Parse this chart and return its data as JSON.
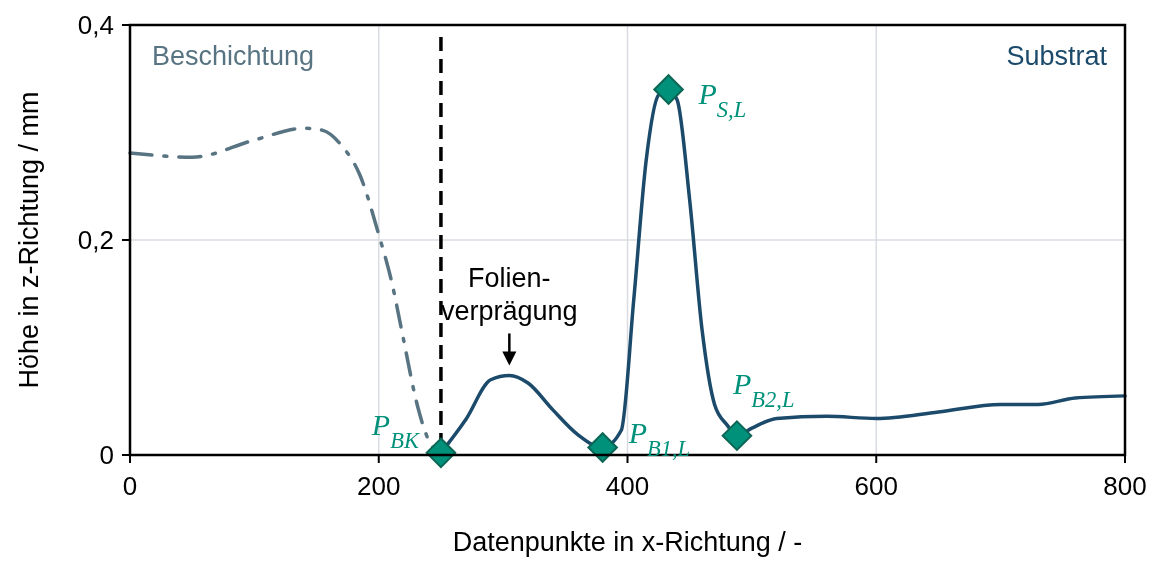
{
  "chart_data": {
    "type": "line",
    "xlabel": "Datenpunkte in x-Richtung / -",
    "ylabel": "Höhe in z-Richtung / mm",
    "xlim": [
      0,
      800
    ],
    "ylim": [
      0,
      0.4
    ],
    "xticks": [
      0,
      200,
      400,
      600,
      800
    ],
    "yticks": [
      0,
      {
        "value": 0.2,
        "label": "0,2"
      },
      {
        "value": 0.4,
        "label": "0,4"
      }
    ],
    "grid": true,
    "series": [
      {
        "name": "Beschichtung",
        "color": "#587482",
        "line_style": "dashdot",
        "marker": "none",
        "x": [
          0,
          50,
          100,
          140,
          155,
          170,
          185,
          200,
          210,
          220,
          230,
          240,
          248
        ],
        "values": [
          0.281,
          0.277,
          0.293,
          0.304,
          0.302,
          0.288,
          0.26,
          0.205,
          0.163,
          0.107,
          0.051,
          0.014,
          0.002
        ]
      },
      {
        "name": "Substrat",
        "color": "#1b4a6b",
        "line_style": "solid",
        "marker": "none",
        "x": [
          250,
          270,
          290,
          305,
          320,
          340,
          360,
          380,
          395,
          405,
          415,
          425,
          433,
          440,
          450,
          460,
          470,
          480,
          488,
          500,
          520,
          560,
          600,
          650,
          700,
          730,
          760,
          800
        ],
        "values": [
          0.002,
          0.033,
          0.07,
          0.074,
          0.067,
          0.042,
          0.019,
          0.007,
          0.023,
          0.144,
          0.274,
          0.335,
          0.34,
          0.33,
          0.237,
          0.116,
          0.047,
          0.028,
          0.018,
          0.025,
          0.034,
          0.036,
          0.034,
          0.04,
          0.047,
          0.047,
          0.053,
          0.055
        ]
      },
      {
        "type": "scatter",
        "color": "#00917b",
        "marker": "diamond",
        "x": [
          250,
          380,
          433,
          488
        ],
        "values": [
          0.002,
          0.007,
          0.34,
          0.018
        ]
      }
    ],
    "ref_lines": [
      {
        "axis": "x",
        "value": 250,
        "color": "#000000",
        "line_style": "dashed"
      }
    ],
    "annotations": [
      {
        "text": "P$_{BK}$",
        "x": 250,
        "y": 0.002
      },
      {
        "text": "P$_{B1,L}$",
        "x": 380,
        "y": 0.007
      },
      {
        "text": "P$_{S,L}$",
        "x": 433,
        "y": 0.34
      },
      {
        "text": "P$_{B2,L}$",
        "x": 488,
        "y": 0.018
      },
      {
        "text": "Folien-\nverprägung",
        "x": 305,
        "y": 0.074
      }
    ]
  }
}
